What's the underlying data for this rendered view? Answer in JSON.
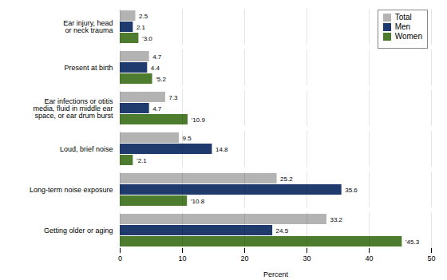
{
  "chart_data": {
    "type": "bar",
    "orientation": "horizontal",
    "categories": [
      "Getting older or aging",
      "Long-term noise exposure",
      "Loud, brief noise",
      "Ear infections or otitis\nmedia, fluid in middle ear\nspace, or ear drum burst",
      "Present at birth",
      "Ear injury, head\nor neck trauma"
    ],
    "series": [
      {
        "name": "Total",
        "color": "#b3b3b3",
        "values": [
          33.2,
          25.2,
          9.5,
          7.3,
          4.7,
          2.5
        ],
        "value_labels": [
          "33.2",
          "25.2",
          "9.5",
          "7.3",
          "4.7",
          "2.5"
        ]
      },
      {
        "name": "Men",
        "color": "#1f3b6e",
        "values": [
          24.5,
          35.6,
          14.8,
          4.7,
          4.4,
          2.1
        ],
        "value_labels": [
          "24.5",
          "35.6",
          "14.8",
          "4.7",
          "4.4",
          "2.1"
        ]
      },
      {
        "name": "Women",
        "color": "#4e7c2f",
        "values": [
          45.3,
          10.8,
          2.1,
          10.9,
          5.2,
          3.0
        ],
        "value_labels": [
          "’45.3",
          "’10.8",
          "’2.1",
          "’10.9",
          "’5.2",
          "’3.0"
        ]
      }
    ],
    "xlabel": "Percent",
    "xlim": [
      0,
      50
    ],
    "xticks": [
      0,
      10,
      20,
      30,
      40,
      50
    ],
    "grid": true,
    "legend": "upper right",
    "data_labels": true
  }
}
